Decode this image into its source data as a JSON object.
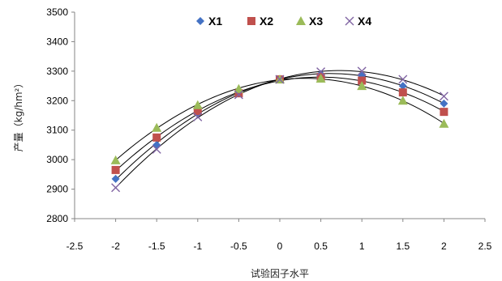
{
  "chart_data": {
    "type": "scatter",
    "xlabel": "试验因子水平",
    "ylabel": "产量（kg/hm²）",
    "xlim": [
      -2.5,
      2.5
    ],
    "ylim": [
      2800,
      3500
    ],
    "x_ticks": [
      "-2.5",
      "-2",
      "-1.5",
      "-1",
      "-0.5",
      "0",
      "0.5",
      "1",
      "1.5",
      "2",
      "2.5"
    ],
    "y_ticks": [
      "2800",
      "2900",
      "3000",
      "3100",
      "3200",
      "3300",
      "3400",
      "3500"
    ],
    "grid": false,
    "legend_position": "top",
    "trendline": "polynomial (quadratic) fit per series",
    "x": [
      -2,
      -1.5,
      -1,
      -0.5,
      0,
      0.5,
      1,
      1.5,
      2
    ],
    "series": [
      {
        "name": "X1",
        "marker": "diamond",
        "color": "#4472C4",
        "values": [
          2935,
          3050,
          3155,
          3230,
          3272,
          3290,
          3285,
          3250,
          3190
        ]
      },
      {
        "name": "X2",
        "marker": "square",
        "color": "#C0504D",
        "values": [
          2965,
          3075,
          3165,
          3225,
          3272,
          3280,
          3268,
          3228,
          3162
        ]
      },
      {
        "name": "X3",
        "marker": "triangle",
        "color": "#9BBB59",
        "values": [
          2998,
          3108,
          3185,
          3240,
          3272,
          3275,
          3250,
          3200,
          3122
        ]
      },
      {
        "name": "X4",
        "marker": "x",
        "color": "#8064A2",
        "values": [
          2905,
          3035,
          3145,
          3220,
          3272,
          3298,
          3300,
          3272,
          3215
        ]
      }
    ]
  }
}
